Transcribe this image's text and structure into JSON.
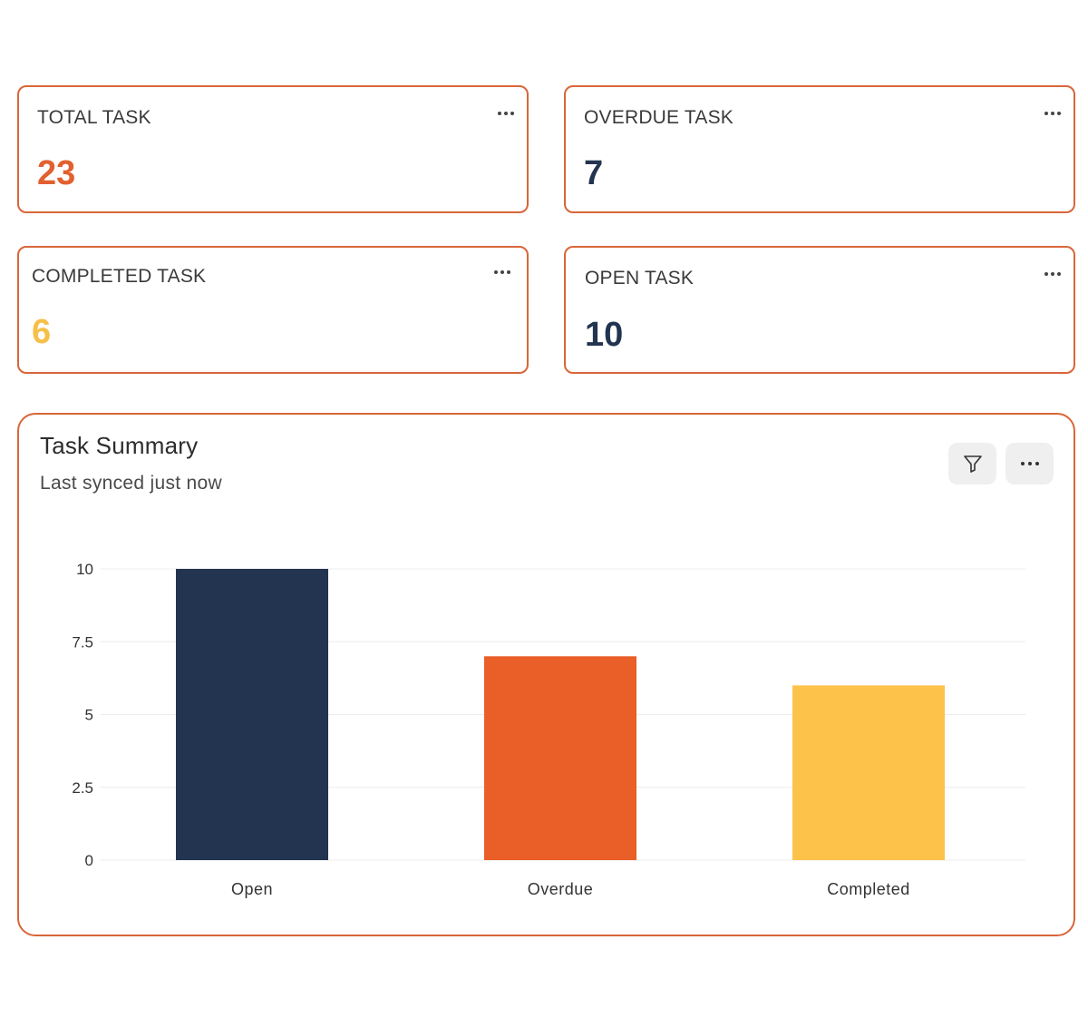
{
  "cards": {
    "total": {
      "label": "TOTAL TASK",
      "value": "23",
      "color": "#e2602f"
    },
    "overdue": {
      "label": "OVERDUE TASK",
      "value": "7",
      "color": "#22344f"
    },
    "completed": {
      "label": "COMPLETED TASK",
      "value": "6",
      "color": "#f5c04a"
    },
    "open": {
      "label": "OPEN TASK",
      "value": "10",
      "color": "#22344f"
    }
  },
  "summary": {
    "title": "Task Summary",
    "subtitle": "Last synced just now",
    "actions": [
      "filter-icon",
      "more-icon"
    ]
  },
  "colors": {
    "card_border": "#d9663a",
    "open": "#22344f",
    "overdue": "#ea5e28",
    "completed": "#fcc24a"
  },
  "chart_data": {
    "type": "bar",
    "categories": [
      "Open",
      "Overdue",
      "Completed"
    ],
    "values": [
      10,
      7,
      6
    ],
    "colors": [
      "#22344f",
      "#ea5e28",
      "#fcc24a"
    ],
    "yticks": [
      "0",
      "2.5",
      "5",
      "7.5",
      "10"
    ],
    "ylim": [
      0,
      10
    ],
    "grid": true,
    "title": "",
    "xlabel": "",
    "ylabel": ""
  }
}
